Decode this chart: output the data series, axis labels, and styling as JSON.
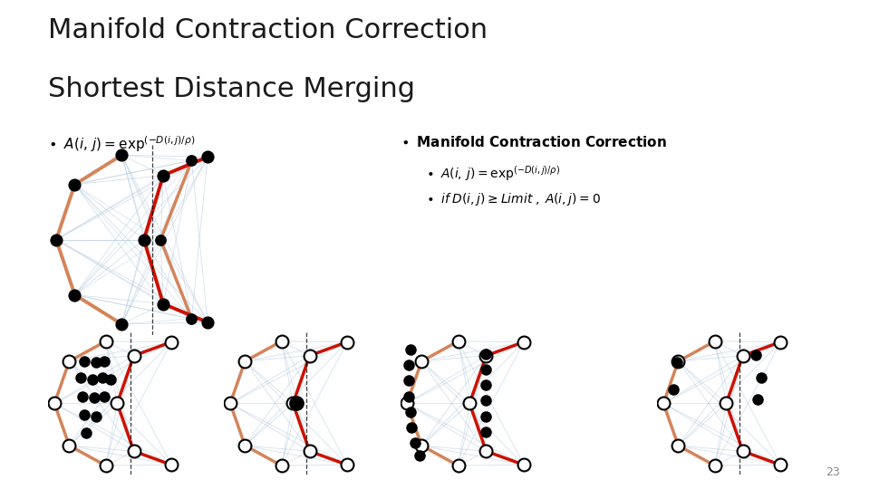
{
  "title_line1": "Manifold Contraction Correction",
  "title_line2": "Shortest Distance Merging",
  "title_fontsize": 22,
  "title_color": "#1a1a1a",
  "bg_color": "#ffffff",
  "slide_number": "23",
  "panel_border_color": "#111111",
  "panel_border_lw": 1.2,
  "node_orange": "#d4845a",
  "node_red": "#cc1100",
  "node_gray_line": "#b0c8de",
  "left_bullet_text": "A(i,j) = \\exp^{(-D(i,j)/\\rho)}",
  "right_title": "Manifold Contraction Correction",
  "right_sub1": "A(i,j) = \\exp^{(-D(i,j)/\\rho)}",
  "right_sub2": "if\\; D(i,j) \\geq Limit\\; ,\\; A(i,j) = 0"
}
